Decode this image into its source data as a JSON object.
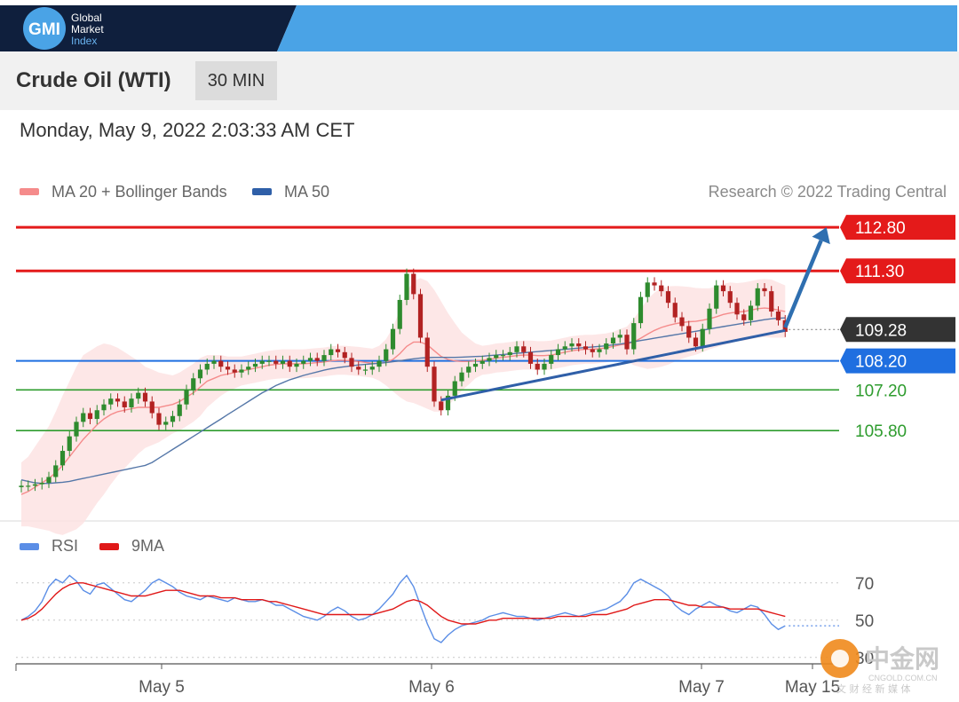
{
  "header": {
    "logo": {
      "mark": "GMI",
      "line1": "Global",
      "line2": "Market",
      "line3": "Index",
      "colors": {
        "navy": "#0f1f3d",
        "blue": "#4aa3e6"
      }
    },
    "title": "Crude Oil (WTI)",
    "interval": "30 MIN",
    "datetime": "Monday, May 9, 2022 2:03:33 AM CET"
  },
  "legend": {
    "items": [
      {
        "label": "MA 20 + Bollinger Bands",
        "color": "#f58b8b"
      },
      {
        "label": "MA 50",
        "color": "#2f5fa8"
      }
    ],
    "credit": "Research © 2022 Trading Central"
  },
  "rsi_legend": {
    "items": [
      {
        "label": "RSI",
        "color": "#5b8ee6"
      },
      {
        "label": "9MA",
        "color": "#e01818"
      }
    ]
  },
  "watermark": {
    "name": "中金网",
    "url": "CNGOLD.COM.CN",
    "tagline": "文 财 经 新 媒 体"
  },
  "chart_data": [
    {
      "type": "candlestick",
      "title": "Crude Oil (WTI)",
      "x_ticks": [
        "May 5",
        "May 6",
        "May 7",
        "May 15"
      ],
      "ylim": [
        102.9,
        113.6
      ],
      "price_labels": [
        {
          "label": "112.80",
          "value": 112.8,
          "kind": "resistance",
          "color": "#e41a1a"
        },
        {
          "label": "111.30",
          "value": 111.3,
          "kind": "resistance",
          "color": "#e41a1a"
        },
        {
          "label": "109.28",
          "value": 109.28,
          "kind": "last",
          "color": "#333333"
        },
        {
          "label": "108.20",
          "value": 108.2,
          "kind": "pivot",
          "color": "#1f6fe0"
        },
        {
          "label": "107.20",
          "value": 107.2,
          "kind": "support",
          "color": "#2e9c2e"
        },
        {
          "label": "105.80",
          "value": 105.8,
          "kind": "support",
          "color": "#2e9c2e"
        }
      ],
      "close": [
        103.9,
        103.9,
        103.95,
        104.0,
        104.2,
        104.6,
        105.1,
        105.6,
        106.1,
        106.4,
        106.2,
        106.5,
        106.7,
        106.9,
        106.8,
        106.6,
        106.9,
        107.1,
        106.8,
        106.4,
        106.0,
        106.1,
        106.3,
        106.7,
        107.2,
        107.6,
        107.9,
        108.1,
        108.2,
        108.0,
        107.9,
        107.8,
        107.9,
        108.0,
        108.1,
        108.2,
        108.2,
        108.1,
        108.2,
        108.0,
        108.1,
        108.2,
        108.3,
        108.2,
        108.4,
        108.6,
        108.5,
        108.3,
        108.0,
        107.9,
        107.9,
        108.0,
        108.2,
        108.6,
        109.3,
        110.3,
        111.2,
        110.5,
        109.0,
        108.0,
        106.8,
        106.5,
        107.0,
        107.5,
        107.8,
        108.0,
        108.1,
        108.2,
        108.3,
        108.4,
        108.4,
        108.5,
        108.7,
        108.5,
        108.1,
        107.9,
        108.1,
        108.4,
        108.6,
        108.7,
        108.8,
        108.7,
        108.6,
        108.5,
        108.6,
        108.8,
        109.0,
        109.1,
        108.6,
        109.5,
        110.4,
        110.9,
        110.8,
        110.6,
        110.2,
        109.7,
        109.4,
        109.0,
        108.7,
        109.3,
        110.0,
        110.8,
        110.6,
        110.2,
        109.8,
        109.6,
        110.1,
        110.7,
        110.6,
        109.9,
        109.6,
        109.2
      ],
      "ma20": [
        103.6,
        103.7,
        103.85,
        104.0,
        104.15,
        104.35,
        104.6,
        104.9,
        105.2,
        105.5,
        105.75,
        106.0,
        106.2,
        106.35,
        106.45,
        106.5,
        106.55,
        106.6,
        106.6,
        106.6,
        106.6,
        106.65,
        106.7,
        106.8,
        106.95,
        107.1,
        107.3,
        107.5,
        107.6,
        107.7,
        107.75,
        107.8,
        107.85,
        107.9,
        107.95,
        108.0,
        108.05,
        108.08,
        108.1,
        108.1,
        108.1,
        108.1,
        108.12,
        108.14,
        108.16,
        108.2,
        108.22,
        108.22,
        108.2,
        108.18,
        108.15,
        108.12,
        108.12,
        108.15,
        108.25,
        108.45,
        108.7,
        108.85,
        108.85,
        108.75,
        108.55,
        108.35,
        108.25,
        108.2,
        108.18,
        108.18,
        108.2,
        108.22,
        108.25,
        108.3,
        108.32,
        108.35,
        108.38,
        108.4,
        108.4,
        108.38,
        108.38,
        108.4,
        108.45,
        108.5,
        108.55,
        108.58,
        108.6,
        108.6,
        108.62,
        108.65,
        108.7,
        108.75,
        108.78,
        108.85,
        108.98,
        109.12,
        109.25,
        109.35,
        109.42,
        109.48,
        109.52,
        109.55,
        109.56,
        109.6,
        109.65,
        109.72,
        109.8,
        109.85,
        109.88,
        109.9,
        109.95,
        110.0,
        110.02,
        110.0,
        109.95,
        109.9
      ],
      "bb_width": [
        1.1,
        1.2,
        1.4,
        1.6,
        1.8,
        2.1,
        2.4,
        2.6,
        2.8,
        2.9,
        2.8,
        2.7,
        2.6,
        2.4,
        2.2,
        2.0,
        1.8,
        1.6,
        1.4,
        1.3,
        1.2,
        1.1,
        1.0,
        1.0,
        1.0,
        1.0,
        1.0,
        0.9,
        0.8,
        0.7,
        0.6,
        0.55,
        0.5,
        0.5,
        0.5,
        0.5,
        0.5,
        0.5,
        0.5,
        0.5,
        0.5,
        0.5,
        0.5,
        0.5,
        0.5,
        0.5,
        0.5,
        0.5,
        0.5,
        0.5,
        0.5,
        0.5,
        0.6,
        0.8,
        1.1,
        1.5,
        1.9,
        2.1,
        2.2,
        2.2,
        2.1,
        1.9,
        1.6,
        1.3,
        1.0,
        0.8,
        0.6,
        0.5,
        0.5,
        0.5,
        0.5,
        0.5,
        0.5,
        0.5,
        0.5,
        0.5,
        0.5,
        0.5,
        0.5,
        0.5,
        0.5,
        0.5,
        0.5,
        0.5,
        0.5,
        0.5,
        0.5,
        0.55,
        0.6,
        0.8,
        1.0,
        1.2,
        1.3,
        1.35,
        1.35,
        1.3,
        1.25,
        1.2,
        1.15,
        1.1,
        1.05,
        1.05,
        1.05,
        1.05,
        1.0,
        1.0,
        1.0,
        1.0,
        1.0,
        1.0,
        0.95,
        0.9
      ],
      "ma50": [
        104.1,
        104.05,
        104.0,
        103.98,
        103.98,
        104.0,
        104.02,
        104.05,
        104.1,
        104.15,
        104.2,
        104.25,
        104.3,
        104.35,
        104.4,
        104.45,
        104.5,
        104.55,
        104.6,
        104.7,
        104.85,
        105.0,
        105.15,
        105.3,
        105.45,
        105.6,
        105.75,
        105.9,
        106.05,
        106.2,
        106.35,
        106.5,
        106.65,
        106.8,
        106.95,
        107.1,
        107.22,
        107.35,
        107.45,
        107.55,
        107.62,
        107.7,
        107.76,
        107.82,
        107.88,
        107.93,
        107.97,
        108.0,
        108.03,
        108.06,
        108.08,
        108.1,
        108.12,
        108.14,
        108.17,
        108.2,
        108.24,
        108.27,
        108.3,
        108.31,
        108.32,
        108.32,
        108.32,
        108.32,
        108.33,
        108.34,
        108.35,
        108.36,
        108.38,
        108.4,
        108.42,
        108.44,
        108.46,
        108.48,
        108.5,
        108.52,
        108.54,
        108.56,
        108.58,
        108.6,
        108.62,
        108.64,
        108.66,
        108.68,
        108.7,
        108.72,
        108.75,
        108.78,
        108.82,
        108.86,
        108.9,
        108.94,
        108.98,
        109.02,
        109.06,
        109.1,
        109.14,
        109.18,
        109.22,
        109.26,
        109.3,
        109.34,
        109.38,
        109.42,
        109.46,
        109.5,
        109.54,
        109.58,
        109.62,
        109.65,
        109.67,
        109.68
      ],
      "trendlines": [
        {
          "from": [
            61,
            106.85
          ],
          "to": [
            111,
            109.25
          ],
          "color": "#2f5fa8"
        }
      ],
      "projection": {
        "from": [
          111,
          109.35
        ],
        "to": [
          117,
          112.8
        ],
        "color": "#2f6fb0"
      }
    },
    {
      "type": "line",
      "title": "RSI",
      "ylim": [
        28,
        78
      ],
      "y_ticks": [
        30,
        50,
        70
      ],
      "series": [
        {
          "name": "RSI",
          "color": "#5b8ee6",
          "values": [
            50,
            52,
            55,
            60,
            68,
            72,
            70,
            74,
            71,
            66,
            64,
            69,
            70,
            67,
            64,
            61,
            60,
            63,
            66,
            70,
            72,
            70,
            68,
            65,
            63,
            62,
            61,
            63,
            62,
            61,
            60,
            62,
            61,
            60,
            60,
            61,
            60,
            58,
            58,
            56,
            54,
            52,
            51,
            50,
            52,
            55,
            57,
            55,
            52,
            50,
            51,
            53,
            56,
            60,
            64,
            70,
            74,
            68,
            58,
            48,
            40,
            38,
            42,
            45,
            47,
            48,
            49,
            50,
            52,
            53,
            54,
            53,
            52,
            52,
            51,
            50,
            51,
            52,
            53,
            54,
            53,
            52,
            53,
            54,
            55,
            56,
            58,
            60,
            64,
            70,
            72,
            70,
            68,
            66,
            63,
            58,
            55,
            53,
            56,
            58,
            60,
            58,
            57,
            55,
            54,
            56,
            58,
            57,
            53,
            48,
            45,
            47
          ]
        },
        {
          "name": "9MA",
          "color": "#e01818",
          "values": [
            50,
            51,
            53,
            56,
            60,
            64,
            67,
            69,
            70,
            70,
            69,
            68,
            67,
            66,
            65,
            64,
            63,
            63,
            63,
            64,
            65,
            66,
            66,
            66,
            65,
            64,
            63,
            63,
            63,
            62,
            62,
            62,
            61,
            61,
            61,
            61,
            60,
            60,
            59,
            58,
            57,
            56,
            55,
            54,
            53,
            53,
            53,
            53,
            53,
            53,
            53,
            53,
            54,
            55,
            56,
            58,
            60,
            61,
            60,
            58,
            55,
            52,
            50,
            49,
            48,
            48,
            48,
            49,
            50,
            50,
            51,
            51,
            51,
            51,
            51,
            51,
            51,
            51,
            52,
            52,
            52,
            52,
            52,
            53,
            53,
            53,
            54,
            55,
            56,
            58,
            59,
            60,
            61,
            61,
            61,
            60,
            59,
            58,
            58,
            57,
            57,
            57,
            57,
            56,
            56,
            56,
            56,
            56,
            55,
            54,
            53,
            52
          ]
        }
      ]
    }
  ]
}
